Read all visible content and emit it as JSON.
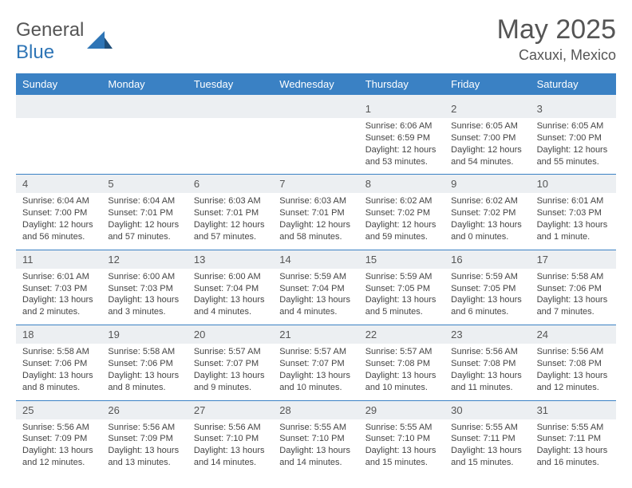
{
  "logo": {
    "text1": "General",
    "text2": "Blue"
  },
  "title": "May 2025",
  "location": "Caxuxi, Mexico",
  "colors": {
    "header_bg": "#3a81c4",
    "stripe_bg": "#eceff2",
    "rule": "#3a81c4",
    "text": "#444"
  },
  "day_names": [
    "Sunday",
    "Monday",
    "Tuesday",
    "Wednesday",
    "Thursday",
    "Friday",
    "Saturday"
  ],
  "weeks": [
    [
      null,
      null,
      null,
      null,
      {
        "n": "1",
        "sr": "6:06 AM",
        "ss": "6:59 PM",
        "dl": "12 hours and 53 minutes."
      },
      {
        "n": "2",
        "sr": "6:05 AM",
        "ss": "7:00 PM",
        "dl": "12 hours and 54 minutes."
      },
      {
        "n": "3",
        "sr": "6:05 AM",
        "ss": "7:00 PM",
        "dl": "12 hours and 55 minutes."
      }
    ],
    [
      {
        "n": "4",
        "sr": "6:04 AM",
        "ss": "7:00 PM",
        "dl": "12 hours and 56 minutes."
      },
      {
        "n": "5",
        "sr": "6:04 AM",
        "ss": "7:01 PM",
        "dl": "12 hours and 57 minutes."
      },
      {
        "n": "6",
        "sr": "6:03 AM",
        "ss": "7:01 PM",
        "dl": "12 hours and 57 minutes."
      },
      {
        "n": "7",
        "sr": "6:03 AM",
        "ss": "7:01 PM",
        "dl": "12 hours and 58 minutes."
      },
      {
        "n": "8",
        "sr": "6:02 AM",
        "ss": "7:02 PM",
        "dl": "12 hours and 59 minutes."
      },
      {
        "n": "9",
        "sr": "6:02 AM",
        "ss": "7:02 PM",
        "dl": "13 hours and 0 minutes."
      },
      {
        "n": "10",
        "sr": "6:01 AM",
        "ss": "7:03 PM",
        "dl": "13 hours and 1 minute."
      }
    ],
    [
      {
        "n": "11",
        "sr": "6:01 AM",
        "ss": "7:03 PM",
        "dl": "13 hours and 2 minutes."
      },
      {
        "n": "12",
        "sr": "6:00 AM",
        "ss": "7:03 PM",
        "dl": "13 hours and 3 minutes."
      },
      {
        "n": "13",
        "sr": "6:00 AM",
        "ss": "7:04 PM",
        "dl": "13 hours and 4 minutes."
      },
      {
        "n": "14",
        "sr": "5:59 AM",
        "ss": "7:04 PM",
        "dl": "13 hours and 4 minutes."
      },
      {
        "n": "15",
        "sr": "5:59 AM",
        "ss": "7:05 PM",
        "dl": "13 hours and 5 minutes."
      },
      {
        "n": "16",
        "sr": "5:59 AM",
        "ss": "7:05 PM",
        "dl": "13 hours and 6 minutes."
      },
      {
        "n": "17",
        "sr": "5:58 AM",
        "ss": "7:06 PM",
        "dl": "13 hours and 7 minutes."
      }
    ],
    [
      {
        "n": "18",
        "sr": "5:58 AM",
        "ss": "7:06 PM",
        "dl": "13 hours and 8 minutes."
      },
      {
        "n": "19",
        "sr": "5:58 AM",
        "ss": "7:06 PM",
        "dl": "13 hours and 8 minutes."
      },
      {
        "n": "20",
        "sr": "5:57 AM",
        "ss": "7:07 PM",
        "dl": "13 hours and 9 minutes."
      },
      {
        "n": "21",
        "sr": "5:57 AM",
        "ss": "7:07 PM",
        "dl": "13 hours and 10 minutes."
      },
      {
        "n": "22",
        "sr": "5:57 AM",
        "ss": "7:08 PM",
        "dl": "13 hours and 10 minutes."
      },
      {
        "n": "23",
        "sr": "5:56 AM",
        "ss": "7:08 PM",
        "dl": "13 hours and 11 minutes."
      },
      {
        "n": "24",
        "sr": "5:56 AM",
        "ss": "7:08 PM",
        "dl": "13 hours and 12 minutes."
      }
    ],
    [
      {
        "n": "25",
        "sr": "5:56 AM",
        "ss": "7:09 PM",
        "dl": "13 hours and 12 minutes."
      },
      {
        "n": "26",
        "sr": "5:56 AM",
        "ss": "7:09 PM",
        "dl": "13 hours and 13 minutes."
      },
      {
        "n": "27",
        "sr": "5:56 AM",
        "ss": "7:10 PM",
        "dl": "13 hours and 14 minutes."
      },
      {
        "n": "28",
        "sr": "5:55 AM",
        "ss": "7:10 PM",
        "dl": "13 hours and 14 minutes."
      },
      {
        "n": "29",
        "sr": "5:55 AM",
        "ss": "7:10 PM",
        "dl": "13 hours and 15 minutes."
      },
      {
        "n": "30",
        "sr": "5:55 AM",
        "ss": "7:11 PM",
        "dl": "13 hours and 15 minutes."
      },
      {
        "n": "31",
        "sr": "5:55 AM",
        "ss": "7:11 PM",
        "dl": "13 hours and 16 minutes."
      }
    ]
  ],
  "labels": {
    "sunrise": "Sunrise:",
    "sunset": "Sunset:",
    "daylight": "Daylight:"
  }
}
